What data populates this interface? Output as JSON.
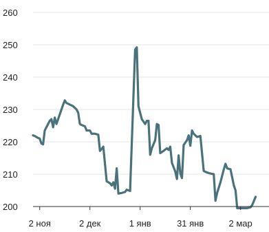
{
  "chart_data": {
    "type": "line",
    "title": "",
    "xlabel": "",
    "ylabel": "",
    "ylim": [
      200,
      260
    ],
    "xlim": [
      "2022-10-29",
      "2023-03-19"
    ],
    "grid": true,
    "legend": "none",
    "y_ticks": [
      {
        "value": 200,
        "label": "200"
      },
      {
        "value": 210,
        "label": "210"
      },
      {
        "value": 220,
        "label": "220"
      },
      {
        "value": 230,
        "label": "230"
      },
      {
        "value": 240,
        "label": "240"
      },
      {
        "value": 250,
        "label": "250"
      },
      {
        "value": 260,
        "label": "260"
      }
    ],
    "x_ticks": [
      {
        "date": "2022-11-02",
        "label": "2 ноя"
      },
      {
        "date": "2022-12-02",
        "label": "2 дек"
      },
      {
        "date": "2023-01-01",
        "label": "1 янв"
      },
      {
        "date": "2023-01-31",
        "label": "31 янв"
      },
      {
        "date": "2023-03-02",
        "label": "2 мар"
      }
    ],
    "colors": {
      "line": "#4a727a",
      "grid": "#e6e6e6",
      "axis": "#333333",
      "text": "#222222"
    },
    "series": [
      {
        "points": [
          [
            "2022-10-29",
            222.0
          ],
          [
            "2022-10-30",
            221.8
          ],
          [
            "2022-10-31",
            221.5
          ],
          [
            "2022-11-01",
            221.2
          ],
          [
            "2022-11-02",
            221.0
          ],
          [
            "2022-11-03",
            219.5
          ],
          [
            "2022-11-04",
            219.2
          ],
          [
            "2022-11-05",
            223.5
          ],
          [
            "2022-11-06",
            224.5
          ],
          [
            "2022-11-07",
            225.5
          ],
          [
            "2022-11-08",
            226.5
          ],
          [
            "2022-11-09",
            227.0
          ],
          [
            "2022-11-10",
            224.5
          ],
          [
            "2022-11-11",
            227.5
          ],
          [
            "2022-11-12",
            225.5
          ],
          [
            "2022-11-14",
            228.5
          ],
          [
            "2022-11-16",
            231.5
          ],
          [
            "2022-11-17",
            232.8
          ],
          [
            "2022-11-18",
            232.0
          ],
          [
            "2022-11-20",
            231.5
          ],
          [
            "2022-11-22",
            231.0
          ],
          [
            "2022-11-24",
            230.0
          ],
          [
            "2022-11-25",
            229.0
          ],
          [
            "2022-11-26",
            225.5
          ],
          [
            "2022-11-27",
            225.2
          ],
          [
            "2022-11-29",
            224.8
          ],
          [
            "2022-11-30",
            223.5
          ],
          [
            "2022-12-02",
            223.5
          ],
          [
            "2022-12-03",
            222.5
          ],
          [
            "2022-12-05",
            222.5
          ],
          [
            "2022-12-07",
            222.2
          ],
          [
            "2022-12-08",
            217.2
          ],
          [
            "2022-12-09",
            217.8
          ],
          [
            "2022-12-10",
            218.5
          ],
          [
            "2022-12-12",
            207.8
          ],
          [
            "2022-12-14",
            207.2
          ],
          [
            "2022-12-15",
            206.5
          ],
          [
            "2022-12-16",
            207.5
          ],
          [
            "2022-12-17",
            205.5
          ],
          [
            "2022-12-18",
            211.8
          ],
          [
            "2022-12-19",
            204.0
          ],
          [
            "2022-12-21",
            204.2
          ],
          [
            "2022-12-23",
            204.5
          ],
          [
            "2022-12-24",
            205.2
          ],
          [
            "2022-12-26",
            204.8
          ],
          [
            "2022-12-29",
            248.5
          ],
          [
            "2022-12-30",
            249.2
          ],
          [
            "2022-12-31",
            231.0
          ],
          [
            "2023-01-02",
            227.0
          ],
          [
            "2023-01-04",
            225.5
          ],
          [
            "2023-01-05",
            226.5
          ],
          [
            "2023-01-06",
            226.5
          ],
          [
            "2023-01-07",
            216.0
          ],
          [
            "2023-01-08",
            218.0
          ],
          [
            "2023-01-10",
            220.5
          ],
          [
            "2023-01-11",
            225.5
          ],
          [
            "2023-01-12",
            225.2
          ],
          [
            "2023-01-13",
            216.5
          ],
          [
            "2023-01-15",
            217.2
          ],
          [
            "2023-01-17",
            218.0
          ],
          [
            "2023-01-18",
            217.5
          ],
          [
            "2023-01-19",
            218.5
          ],
          [
            "2023-01-20",
            213.5
          ],
          [
            "2023-01-22",
            210.8
          ],
          [
            "2023-01-23",
            208.5
          ],
          [
            "2023-01-24",
            215.8
          ],
          [
            "2023-01-25",
            210.2
          ],
          [
            "2023-01-26",
            208.8
          ],
          [
            "2023-01-27",
            219.0
          ],
          [
            "2023-01-29",
            220.5
          ],
          [
            "2023-01-30",
            222.0
          ],
          [
            "2023-01-31",
            218.8
          ],
          [
            "2023-02-01",
            223.5
          ],
          [
            "2023-02-02",
            222.5
          ],
          [
            "2023-02-04",
            221.5
          ],
          [
            "2023-02-06",
            221.8
          ],
          [
            "2023-02-08",
            211.0
          ],
          [
            "2023-02-10",
            210.5
          ],
          [
            "2023-02-12",
            210.2
          ],
          [
            "2023-02-14",
            210.0
          ],
          [
            "2023-02-15",
            201.8
          ],
          [
            "2023-02-16",
            204.2
          ],
          [
            "2023-02-18",
            207.5
          ],
          [
            "2023-02-20",
            211.5
          ],
          [
            "2023-02-21",
            213.2
          ],
          [
            "2023-02-22",
            211.8
          ],
          [
            "2023-02-24",
            211.5
          ],
          [
            "2023-02-26",
            206.5
          ],
          [
            "2023-02-27",
            205.0
          ],
          [
            "2023-02-28",
            199.5
          ],
          [
            "2023-03-06",
            199.5
          ],
          [
            "2023-03-08",
            199.8
          ],
          [
            "2023-03-09",
            200.5
          ],
          [
            "2023-03-11",
            203.0
          ]
        ]
      }
    ]
  }
}
